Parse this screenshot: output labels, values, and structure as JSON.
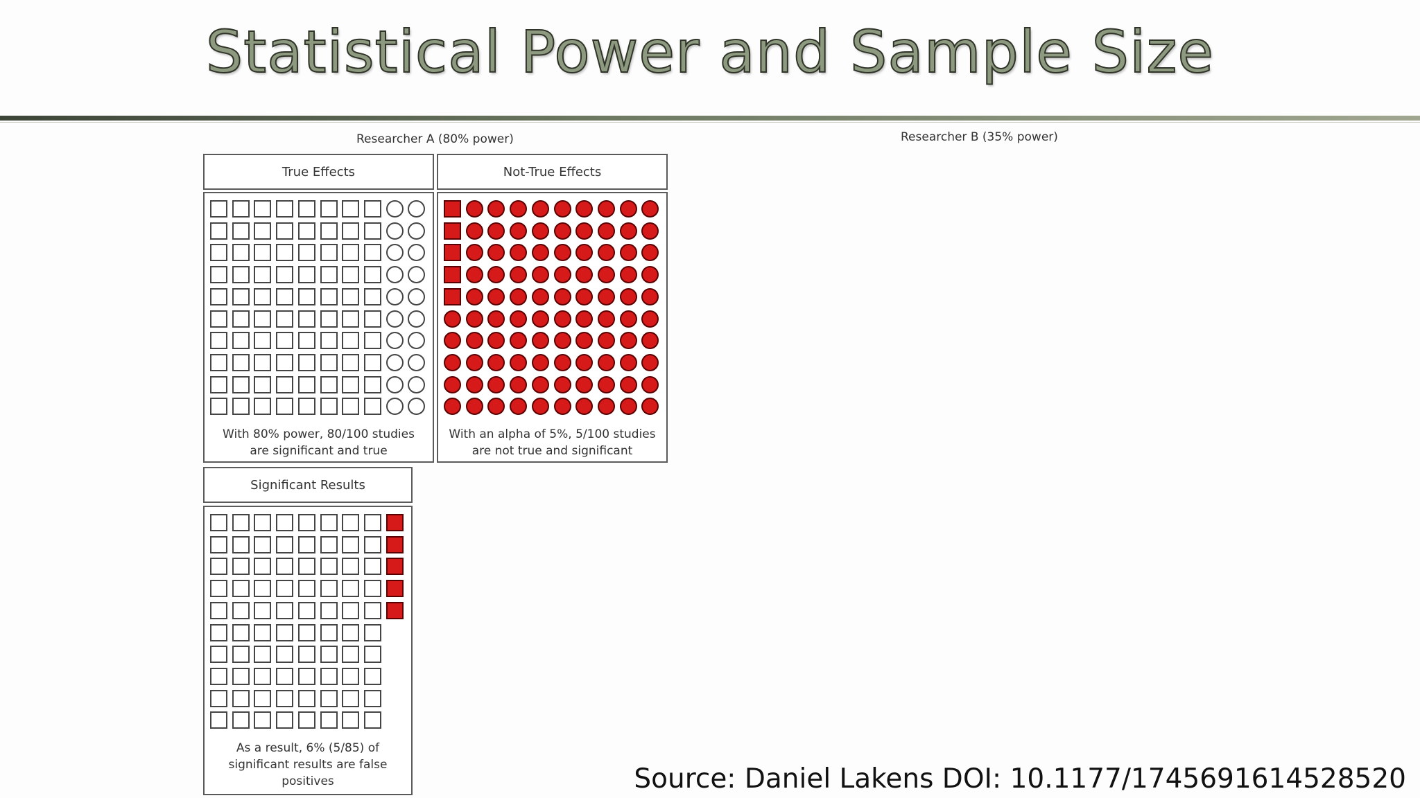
{
  "title": "Statistical Power and Sample Size",
  "researcher_a_label": "Researcher A (80% power)",
  "researcher_b_label": "Researcher B (35% power)",
  "panels": {
    "true_effects": {
      "header": "True Effects",
      "caption_line1": "With 80% power, 80/100 studies",
      "caption_line2": "are significant and true",
      "rows": 10,
      "cols": 10,
      "significant_per_row": 8,
      "colors": {
        "empty": "#ffffff",
        "red": "#d61a1a"
      }
    },
    "not_true_effects": {
      "header": "Not-True Effects",
      "caption_line1": "With an alpha of 5%, 5/100 studies",
      "caption_line2": "are not true and significant",
      "rows": 10,
      "cols": 10,
      "significant_count": 5
    },
    "significant_results": {
      "header": "Significant Results",
      "caption_line1": "As a result, 6% (5/85) of",
      "caption_line2": "significant results are false",
      "caption_line3": "positives",
      "rows": 10,
      "true_cols": 8,
      "false_positive_count": 5
    }
  },
  "source": "Source: Daniel Lakens DOI: 10.1177/1745691614528520",
  "colors": {
    "accent_red": "#d61a1a",
    "title_fill": "#8e9a80",
    "rule": "#3d4538"
  }
}
